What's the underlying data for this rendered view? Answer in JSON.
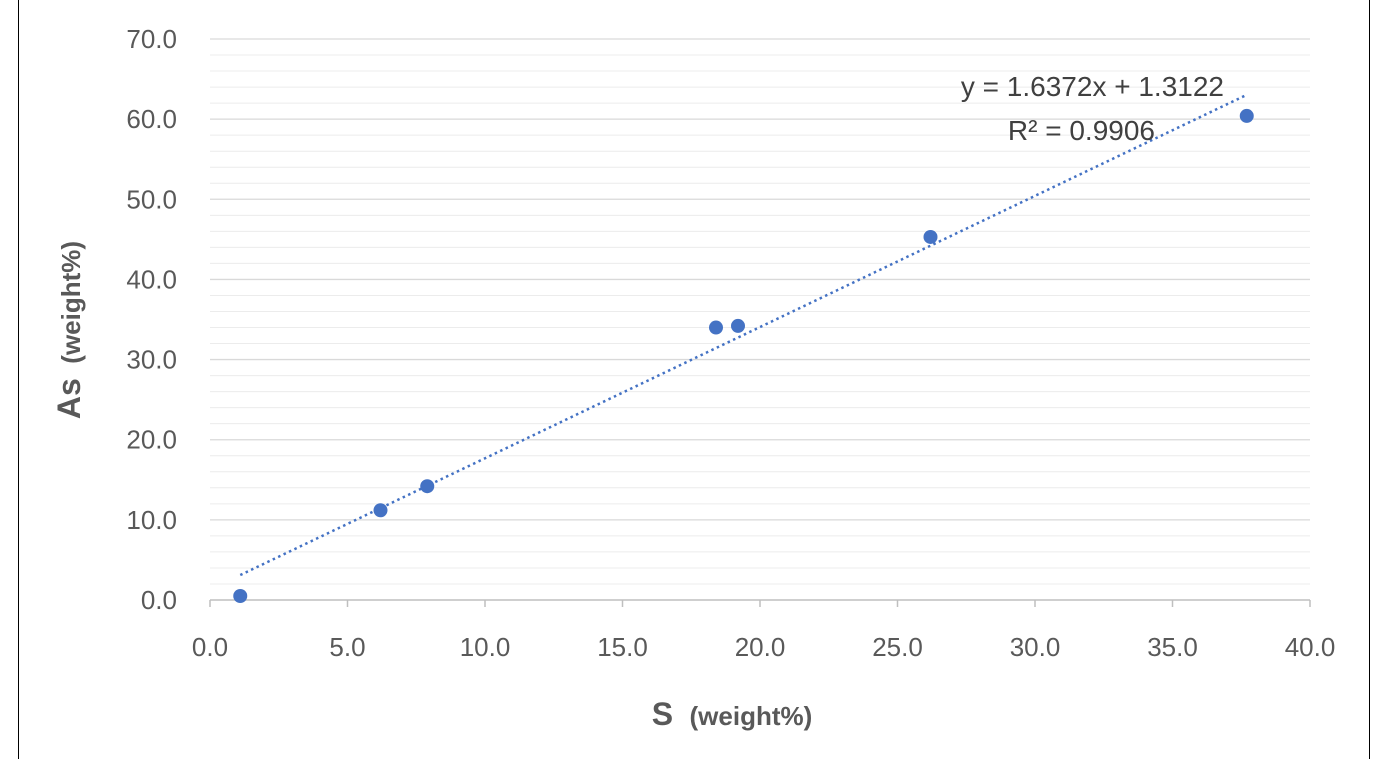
{
  "chart_data": {
    "type": "scatter",
    "title": "",
    "xlabel": {
      "main": "S",
      "unit": "(weight%)"
    },
    "ylabel": {
      "main": "As",
      "unit": "(weight%)"
    },
    "xlim": [
      0,
      40
    ],
    "ylim": [
      0,
      70
    ],
    "x_ticks": [
      "0.0",
      "5.0",
      "10.0",
      "15.0",
      "20.0",
      "25.0",
      "30.0",
      "35.0",
      "40.0"
    ],
    "y_ticks": [
      "0.0",
      "10.0",
      "20.0",
      "30.0",
      "40.0",
      "50.0",
      "60.0",
      "70.0"
    ],
    "grid": {
      "major": true,
      "minor": true,
      "major_step": 10,
      "minor_step": 2
    },
    "series": [
      {
        "color": "#4472C4",
        "points": [
          {
            "x": 1.1,
            "y": 0.5
          },
          {
            "x": 6.2,
            "y": 11.2
          },
          {
            "x": 7.9,
            "y": 14.2
          },
          {
            "x": 18.4,
            "y": 34.0
          },
          {
            "x": 19.2,
            "y": 34.2
          },
          {
            "x": 26.2,
            "y": 45.3
          },
          {
            "x": 37.7,
            "y": 60.4
          }
        ]
      }
    ],
    "trendline": {
      "type": "linear",
      "slope": 1.6372,
      "intercept": 1.3122,
      "x_range": [
        1.1,
        37.7
      ],
      "style": "dotted",
      "color": "#4472C4",
      "equation_label": "y = 1.6372x + 1.3122",
      "r2_label": "R² = 0.9906"
    }
  }
}
